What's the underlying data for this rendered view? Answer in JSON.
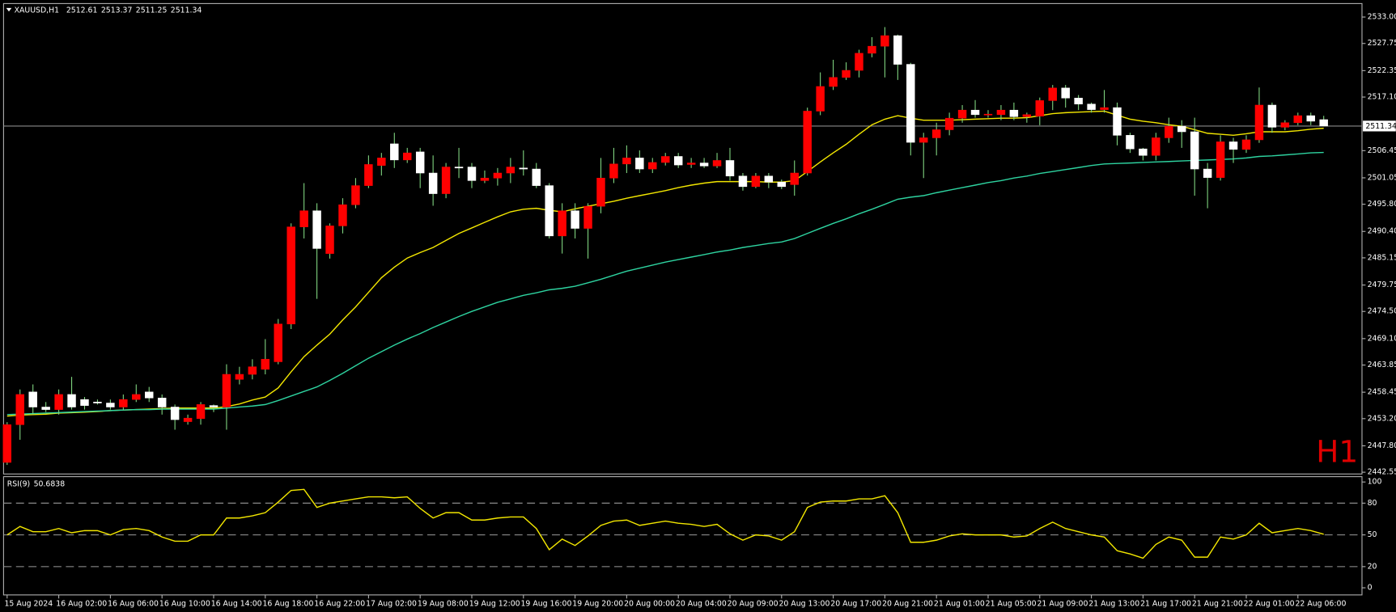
{
  "chart_data": [
    {
      "type": "candlestick",
      "title": "XAUUSD,H1",
      "quote": [
        2512.61,
        2513.37,
        2511.25,
        2511.34
      ],
      "watermark": "H1",
      "up_color": "#ff0000",
      "down_color": "#ffffff",
      "wick_color": "#7fd37f",
      "current_price": 2511.34,
      "categories": [
        "15 Aug 2024",
        null,
        null,
        null,
        "16 Aug 02:00",
        null,
        null,
        null,
        "16 Aug 06:00",
        null,
        null,
        null,
        "16 Aug 10:00",
        null,
        null,
        null,
        "16 Aug 14:00",
        null,
        null,
        null,
        "16 Aug 18:00",
        null,
        null,
        null,
        "16 Aug 22:00",
        null,
        null,
        null,
        "17 Aug 02:00",
        null,
        null,
        null,
        "19 Aug 08:00",
        null,
        null,
        null,
        "19 Aug 12:00",
        null,
        null,
        null,
        "19 Aug 16:00",
        null,
        null,
        null,
        "19 Aug 20:00",
        null,
        null,
        null,
        "20 Aug 00:00",
        null,
        null,
        null,
        "20 Aug 04:00",
        null,
        null,
        null,
        "20 Aug 09:00",
        null,
        null,
        null,
        "20 Aug 13:00",
        null,
        null,
        null,
        "20 Aug 17:00",
        null,
        null,
        null,
        "20 Aug 21:00",
        null,
        null,
        null,
        "21 Aug 01:00",
        null,
        null,
        null,
        "21 Aug 05:00",
        null,
        null,
        null,
        "21 Aug 09:00",
        null,
        null,
        null,
        "21 Aug 13:00",
        null,
        null,
        null,
        "21 Aug 17:00",
        null,
        null,
        null,
        "21 Aug 21:00",
        null,
        null,
        null,
        "22 Aug 01:00",
        null,
        null,
        null,
        "22 Aug 06:00",
        null,
        null
      ],
      "open": [
        2444.5,
        2452,
        2458.5,
        2455.5,
        2455,
        2458,
        2457,
        2456.5,
        2456.3,
        2455.5,
        2457,
        2458.5,
        2457.3,
        2455.5,
        2452.6,
        2453.2,
        2455.8,
        2455.5,
        2461,
        2462,
        2463,
        2464.5,
        2472,
        2491.3,
        2494.5,
        2486,
        2491.5,
        2495.7,
        2499.5,
        2503.5,
        2507.8,
        2504.6,
        2506.2,
        2502,
        2497.9,
        2503.2,
        2503.2,
        2500.5,
        2501,
        2502,
        2503,
        2502.8,
        2499.5,
        2489.5,
        2494.5,
        2491,
        2495.4,
        2501,
        2503.8,
        2505,
        2502.8,
        2504.1,
        2505.3,
        2503.7,
        2504,
        2503.4,
        2504.5,
        2501.4,
        2499.3,
        2501.4,
        2500.2,
        2499.7,
        2502,
        2514.3,
        2519.2,
        2521,
        2522.4,
        2525.8,
        2527.2,
        2529.3,
        2523.6,
        2508.1,
        2509,
        2510.6,
        2512.9,
        2514.5,
        2513.6,
        2513.6,
        2514.5,
        2513.2,
        2513.3,
        2516.4,
        2518.9,
        2516.9,
        2515.7,
        2514.6,
        2515,
        2509.5,
        2506.8,
        2505.5,
        2509,
        2511.3,
        2510.2,
        2502.8,
        2501.1,
        2508.2,
        2506.7,
        2508.6,
        2515.5,
        2511.1,
        2512,
        2513.4,
        2512.61
      ],
      "high": [
        2452.5,
        2459,
        2460,
        2456.5,
        2459,
        2461.5,
        2457.5,
        2457,
        2457,
        2458,
        2460,
        2459.5,
        2458,
        2456,
        2454,
        2456.5,
        2456,
        2464,
        2463.5,
        2465,
        2469,
        2473,
        2492,
        2500,
        2496,
        2492,
        2497,
        2501,
        2505.5,
        2506,
        2510,
        2507,
        2507,
        2505.5,
        2504,
        2507,
        2504,
        2502.5,
        2503,
        2505,
        2506.5,
        2504,
        2500,
        2496,
        2496,
        2496,
        2505,
        2507,
        2507.5,
        2506.5,
        2505,
        2506,
        2506,
        2505,
        2505,
        2506,
        2507,
        2502,
        2502,
        2502,
        2500.7,
        2504.5,
        2515,
        2522,
        2524.5,
        2524,
        2526.5,
        2529,
        2531,
        2529.5,
        2523.9,
        2510,
        2512,
        2514,
        2515.5,
        2516.5,
        2514.5,
        2515.5,
        2516,
        2514,
        2517,
        2519.5,
        2519.5,
        2517.5,
        2516,
        2518.5,
        2516,
        2510,
        2507,
        2510,
        2513,
        2512.5,
        2513,
        2504,
        2509.5,
        2509,
        2509.5,
        2519,
        2516,
        2512.5,
        2514,
        2514,
        2513.37
      ],
      "low": [
        2444,
        2449,
        2454,
        2454.5,
        2454,
        2455,
        2455,
        2456,
        2455,
        2455,
        2456.5,
        2456.5,
        2454,
        2451,
        2452,
        2452,
        2454.5,
        2451,
        2460,
        2461,
        2462,
        2464,
        2471,
        2489,
        2477,
        2485,
        2490,
        2495,
        2499,
        2501.5,
        2503,
        2504,
        2499,
        2495.5,
        2497,
        2501,
        2499,
        2500,
        2499.5,
        2500,
        2501.5,
        2499,
        2489,
        2486,
        2489,
        2485,
        2494,
        2500,
        2502,
        2502,
        2502,
        2503.5,
        2503,
        2503,
        2503,
        2503,
        2500.5,
        2498.5,
        2499,
        2499,
        2498.8,
        2497.5,
        2501.5,
        2513.5,
        2518.5,
        2520.5,
        2521,
        2525,
        2521,
        2520.5,
        2505.5,
        2501,
        2505.5,
        2509.5,
        2512,
        2513,
        2513,
        2512.5,
        2512.5,
        2512,
        2511.5,
        2514.5,
        2515,
        2514.5,
        2514,
        2514,
        2507.5,
        2506,
        2504.5,
        2504.5,
        2508,
        2507,
        2497.5,
        2495,
        2500.5,
        2504,
        2506,
        2508,
        2510,
        2510.5,
        2511.5,
        2511.5,
        2511.25
      ],
      "close": [
        2452,
        2458,
        2455.5,
        2455,
        2458,
        2455.5,
        2455.8,
        2456.3,
        2455.5,
        2457,
        2458,
        2457.3,
        2455.5,
        2453,
        2453.3,
        2456,
        2455.5,
        2462,
        2462,
        2463.5,
        2465,
        2472,
        2491.3,
        2494.5,
        2487,
        2491.5,
        2495.7,
        2499.5,
        2503.7,
        2505,
        2504.6,
        2506,
        2502,
        2497.9,
        2503.2,
        2503,
        2500.5,
        2501,
        2502,
        2503.2,
        2502.8,
        2499.5,
        2489.5,
        2494.5,
        2491,
        2495.4,
        2501,
        2503.8,
        2505,
        2502.8,
        2504.1,
        2505.3,
        2503.6,
        2504,
        2503.4,
        2504.5,
        2501.4,
        2499.3,
        2501.4,
        2500.2,
        2499.3,
        2502,
        2514.3,
        2519.2,
        2521,
        2522.4,
        2525.8,
        2527.2,
        2529.3,
        2523.6,
        2508.1,
        2509,
        2510.6,
        2512.9,
        2514.5,
        2513.6,
        2513.7,
        2514.5,
        2513.2,
        2513.6,
        2516.4,
        2518.9,
        2516.9,
        2515.7,
        2514.6,
        2515,
        2509.5,
        2506.8,
        2505.5,
        2509,
        2511.3,
        2510.2,
        2502.8,
        2501.1,
        2508.2,
        2506.7,
        2508.6,
        2515.5,
        2511.1,
        2512,
        2513.4,
        2512.3,
        2511.34
      ],
      "lines": [
        {
          "color": "#f2e600",
          "values": [
            2453.7,
            2453.9,
            2454,
            2454.1,
            2454.3,
            2454.4,
            2454.5,
            2454.6,
            2454.8,
            2454.9,
            2455,
            2455.1,
            2455.2,
            2455.3,
            2455.3,
            2455.3,
            2455.3,
            2455.6,
            2456.1,
            2456.9,
            2457.5,
            2459.3,
            2462.5,
            2465.5,
            2467.8,
            2470,
            2472.8,
            2475.4,
            2478.3,
            2481.2,
            2483.3,
            2485.1,
            2486.2,
            2487.2,
            2488.6,
            2490,
            2491.1,
            2492.2,
            2493.3,
            2494.3,
            2494.8,
            2495,
            2494.6,
            2494.3,
            2494.9,
            2495.4,
            2495.9,
            2496.4,
            2497,
            2497.5,
            2498,
            2498.5,
            2499.1,
            2499.6,
            2500,
            2500.3,
            2500.3,
            2500.3,
            2500.3,
            2500.2,
            2500.2,
            2500.5,
            2502.3,
            2504.2,
            2506,
            2507.7,
            2509.7,
            2511.6,
            2512.7,
            2513.4,
            2512.9,
            2512.5,
            2512.5,
            2512.5,
            2512.6,
            2512.7,
            2512.8,
            2512.9,
            2512.9,
            2513,
            2513.4,
            2513.8,
            2514,
            2514.1,
            2514.2,
            2514.3,
            2513.5,
            2512.7,
            2512.3,
            2512,
            2511.6,
            2511.3,
            2510.6,
            2509.9,
            2509.7,
            2509.5,
            2509.8,
            2510.2,
            2510.2,
            2510.2,
            2510.4,
            2510.7,
            2510.9
          ]
        },
        {
          "color": "#2ed3a0",
          "values": [
            2454,
            2454.1,
            2454.2,
            2454.3,
            2454.4,
            2454.5,
            2454.6,
            2454.7,
            2454.8,
            2454.9,
            2455,
            2455,
            2455.1,
            2455.1,
            2455.1,
            2455.1,
            2455.1,
            2455.3,
            2455.5,
            2455.7,
            2456,
            2456.8,
            2457.7,
            2458.6,
            2459.5,
            2460.8,
            2462.2,
            2463.7,
            2465.2,
            2466.5,
            2467.8,
            2469,
            2470.1,
            2471.3,
            2472.4,
            2473.5,
            2474.5,
            2475.4,
            2476.3,
            2477,
            2477.7,
            2478.2,
            2478.8,
            2479.1,
            2479.5,
            2480.2,
            2480.9,
            2481.7,
            2482.5,
            2483.1,
            2483.7,
            2484.3,
            2484.8,
            2485.3,
            2485.8,
            2486.3,
            2486.7,
            2487.2,
            2487.6,
            2488,
            2488.3,
            2489,
            2490,
            2491,
            2492,
            2492.9,
            2493.9,
            2494.8,
            2495.8,
            2496.8,
            2497.2,
            2497.5,
            2498.1,
            2498.6,
            2499.1,
            2499.6,
            2500.1,
            2500.5,
            2501,
            2501.4,
            2501.9,
            2502.3,
            2502.7,
            2503.1,
            2503.5,
            2503.8,
            2503.9,
            2504,
            2504.1,
            2504.2,
            2504.3,
            2504.4,
            2504.5,
            2504.6,
            2504.7,
            2504.8,
            2505,
            2505.3,
            2505.4,
            2505.6,
            2505.8,
            2506,
            2506.1
          ]
        }
      ],
      "ylim": [
        2442.2,
        2535.5
      ],
      "yticks": [
        {
          "value": 2533,
          "label": "2533.00"
        },
        2527.75,
        2522.35,
        {
          "value": 2517.1,
          "label": "2517.10"
        },
        2506.45,
        2501.05,
        {
          "value": 2495.8,
          "label": "2495.80"
        },
        {
          "value": 2490.4,
          "label": "2490.40"
        },
        2485.15,
        2479.75,
        {
          "value": 2474.5,
          "label": "2474.50"
        },
        {
          "value": 2469.1,
          "label": "2469.10"
        },
        2463.85,
        2458.45,
        {
          "value": 2453.2,
          "label": "2453.20"
        },
        {
          "value": 2447.8,
          "label": "2447.80"
        },
        2442.55
      ]
    },
    {
      "type": "line",
      "title": "RSI(9)",
      "current_value": 50.6838,
      "color": "#f2e600",
      "values": [
        50,
        58,
        53,
        53,
        56,
        52,
        54,
        54,
        50,
        55,
        56,
        54,
        48,
        44,
        44,
        50,
        50,
        66,
        66,
        68,
        71,
        81,
        92,
        93,
        76,
        80,
        82,
        84,
        86,
        86,
        85,
        86,
        75,
        66,
        71,
        71,
        64,
        64,
        66,
        67,
        67,
        56,
        36,
        46,
        40,
        49,
        59,
        63,
        64,
        59,
        61,
        63,
        61,
        60,
        58,
        60,
        51,
        45,
        50,
        49,
        45,
        53,
        76,
        81,
        82,
        82,
        84,
        84,
        87,
        71,
        43,
        43,
        45,
        49,
        51,
        50,
        50,
        50,
        48,
        49,
        56,
        62,
        56,
        53,
        50,
        48,
        35,
        32,
        28,
        41,
        48,
        45,
        29,
        29,
        48,
        46,
        50,
        61,
        52,
        54,
        56,
        54,
        50.7
      ],
      "levels": [
        20,
        50,
        80
      ],
      "ylim": [
        -5.9,
        104.2
      ],
      "yticks": [
        0,
        20,
        50,
        80,
        100
      ]
    }
  ]
}
